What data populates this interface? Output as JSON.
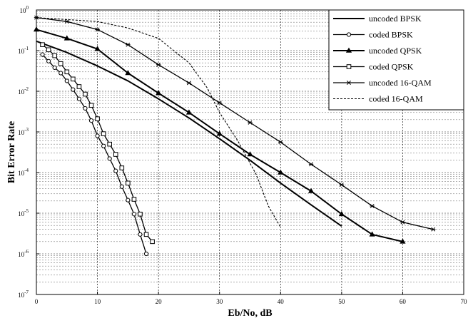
{
  "chart_data": {
    "type": "line",
    "xlabel": "Eb/No, dB",
    "ylabel": "Bit Error Rate",
    "xlim": [
      0,
      70
    ],
    "ylim": [
      1e-07,
      1
    ],
    "yscale": "log",
    "grid": true,
    "legend_position": "top-right",
    "x_ticks": [
      "0",
      "10",
      "20",
      "30",
      "40",
      "50",
      "60",
      "70"
    ],
    "y_ticks": [
      {
        "base": "10",
        "exp": "0"
      },
      {
        "base": "10",
        "exp": "-1"
      },
      {
        "base": "10",
        "exp": "-2"
      },
      {
        "base": "10",
        "exp": "-3"
      },
      {
        "base": "10",
        "exp": "-4"
      },
      {
        "base": "10",
        "exp": "-5"
      },
      {
        "base": "10",
        "exp": "-6"
      },
      {
        "base": "10",
        "exp": "-7"
      }
    ],
    "series": [
      {
        "name": "uncoded BPSK",
        "style": "solid",
        "marker": "none",
        "line_width": 2,
        "points": [
          [
            0,
            0.17
          ],
          [
            5,
            0.09
          ],
          [
            10,
            0.042
          ],
          [
            15,
            0.018
          ],
          [
            20,
            0.0065
          ],
          [
            25,
            0.0022
          ],
          [
            30,
            0.00068
          ],
          [
            35,
            0.0002
          ],
          [
            40,
            5.5e-05
          ],
          [
            45,
            1.6e-05
          ],
          [
            50,
            4.8e-06
          ]
        ]
      },
      {
        "name": "coded BPSK",
        "style": "solid",
        "marker": "circle",
        "line_width": 1.3,
        "points": [
          [
            1,
            0.08
          ],
          [
            2,
            0.055
          ],
          [
            3,
            0.038
          ],
          [
            4,
            0.028
          ],
          [
            5,
            0.018
          ],
          [
            6,
            0.011
          ],
          [
            7,
            0.0065
          ],
          [
            8,
            0.0038
          ],
          [
            9,
            0.0019
          ],
          [
            10,
            0.0008
          ],
          [
            11,
            0.00045
          ],
          [
            12,
            0.00022
          ],
          [
            13,
            0.00011
          ],
          [
            14,
            4.5e-05
          ],
          [
            15,
            2.1e-05
          ],
          [
            16,
            9.5e-06
          ],
          [
            17,
            3e-06
          ],
          [
            18,
            1e-06
          ]
        ]
      },
      {
        "name": "uncoded QPSK",
        "style": "solid",
        "marker": "triangle",
        "line_width": 2,
        "points": [
          [
            0,
            0.33
          ],
          [
            5,
            0.2
          ],
          [
            10,
            0.11
          ],
          [
            15,
            0.028
          ],
          [
            20,
            0.009
          ],
          [
            25,
            0.003
          ],
          [
            30,
            0.0009
          ],
          [
            35,
            0.00028
          ],
          [
            40,
            0.0001
          ],
          [
            45,
            3.5e-05
          ],
          [
            50,
            9.5e-06
          ],
          [
            55,
            3e-06
          ],
          [
            60,
            2e-06
          ]
        ]
      },
      {
        "name": "coded QPSK",
        "style": "solid",
        "marker": "square",
        "line_width": 1.3,
        "points": [
          [
            1,
            0.14
          ],
          [
            2,
            0.105
          ],
          [
            3,
            0.075
          ],
          [
            4,
            0.048
          ],
          [
            5,
            0.03
          ],
          [
            6,
            0.02
          ],
          [
            7,
            0.013
          ],
          [
            8,
            0.0085
          ],
          [
            9,
            0.0045
          ],
          [
            10,
            0.0021
          ],
          [
            11,
            0.0009
          ],
          [
            12,
            0.0005
          ],
          [
            13,
            0.00028
          ],
          [
            14,
            0.00013
          ],
          [
            15,
            5.5e-05
          ],
          [
            16,
            2.2e-05
          ],
          [
            17,
            9.5e-06
          ],
          [
            18,
            3e-06
          ],
          [
            19,
            2e-06
          ]
        ]
      },
      {
        "name": "uncoded 16-QAM",
        "style": "solid",
        "marker": "star",
        "line_width": 1.3,
        "points": [
          [
            0,
            0.65
          ],
          [
            5,
            0.52
          ],
          [
            10,
            0.33
          ],
          [
            15,
            0.14
          ],
          [
            20,
            0.045
          ],
          [
            25,
            0.016
          ],
          [
            30,
            0.0052
          ],
          [
            35,
            0.0017
          ],
          [
            40,
            0.00056
          ],
          [
            45,
            0.00016
          ],
          [
            50,
            5e-05
          ],
          [
            55,
            1.5e-05
          ],
          [
            60,
            6e-06
          ],
          [
            65,
            4e-06
          ]
        ]
      },
      {
        "name": "coded 16-QAM",
        "style": "dashed",
        "marker": "none",
        "line_width": 1.1,
        "points": [
          [
            0,
            0.65
          ],
          [
            10,
            0.52
          ],
          [
            15,
            0.36
          ],
          [
            20,
            0.2
          ],
          [
            25,
            0.05
          ],
          [
            28,
            0.012
          ],
          [
            30,
            0.003
          ],
          [
            33,
            0.0006
          ],
          [
            36,
            9e-05
          ],
          [
            38,
            1.5e-05
          ],
          [
            40,
            4.5e-06
          ]
        ]
      }
    ]
  }
}
